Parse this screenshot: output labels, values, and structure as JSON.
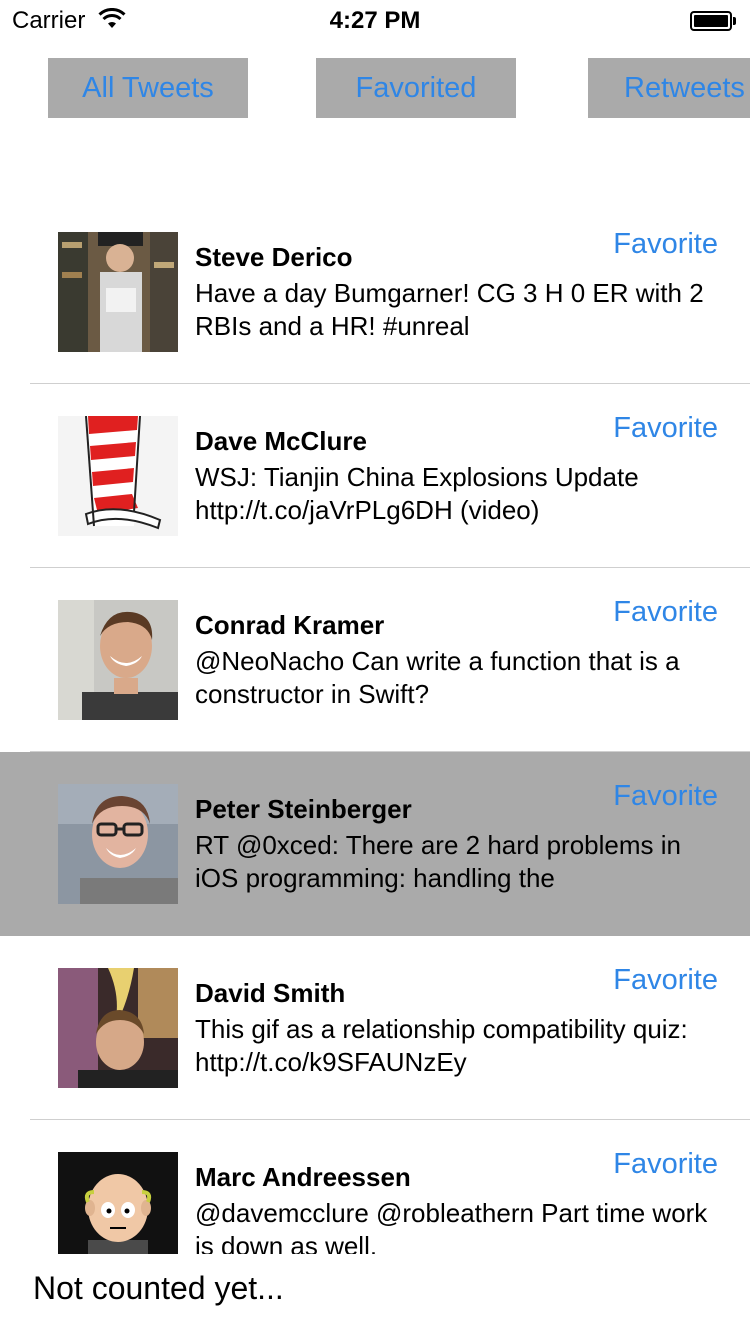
{
  "status_bar": {
    "carrier": "Carrier",
    "time": "4:27 PM"
  },
  "tabs": [
    "All Tweets",
    "Favorited",
    "Retweets"
  ],
  "tweets": [
    {
      "name": "Steve Derico",
      "text": "Have a day Bumgarner! CG 3 H 0 ER with 2 RBIs and a HR! #unreal",
      "action": "Favorite",
      "selected": false
    },
    {
      "name": "Dave McClure",
      "text": "WSJ: Tianjin China Explosions Update http://t.co/jaVrPLg6DH (video)",
      "action": "Favorite",
      "selected": false
    },
    {
      "name": "Conrad Kramer",
      "text": "@NeoNacho Can write a function that is a constructor in Swift?",
      "action": "Favorite",
      "selected": false
    },
    {
      "name": "Peter Steinberger",
      "text": "RT @0xced: There are 2 hard problems in iOS programming: handling the",
      "action": "Favorite",
      "selected": true
    },
    {
      "name": "David Smith",
      "text": "This gif as a relationship compatibility quiz: http://t.co/k9SFAUNzEy",
      "action": "Favorite",
      "selected": false
    },
    {
      "name": "Marc Andreessen",
      "text": "@davemcclure @robleathern Part time work is down as well.",
      "action": "Favorite",
      "selected": false
    }
  ],
  "footer": {
    "status": "Not counted yet..."
  },
  "colors": {
    "accent": "#2f86e6",
    "segment_bg": "#aaaaaa",
    "selected_row": "#aaaaaa"
  }
}
